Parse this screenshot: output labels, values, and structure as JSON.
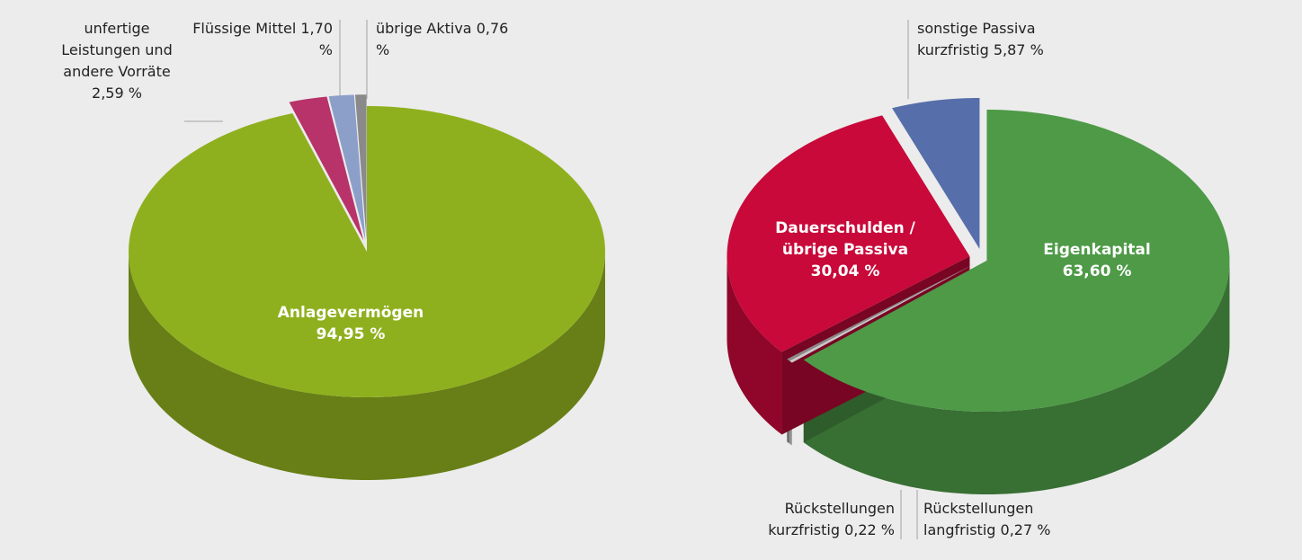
{
  "chart_data": [
    {
      "type": "pie3d",
      "categories": [
        "Anlagevermögen",
        "unfertige Leistungen und andere Vorräte",
        "Flüssige Mittel",
        "übrige Aktiva"
      ],
      "values": [
        94.95,
        2.59,
        1.7,
        0.76
      ],
      "value_labels": [
        "94,95 %",
        "2,59 %",
        "1,70 %",
        "0,76 %"
      ],
      "colors": [
        "#8fb01e",
        "#b8336a",
        "#8c9fc9",
        "#8a8a8a"
      ]
    },
    {
      "type": "pie3d",
      "categories": [
        "Eigenkapital",
        "Rückstellungen langfristig",
        "Rückstellungen kurzfristig",
        "Dauerschulden / übrige Passiva",
        "sonstige Passiva kurzfristig"
      ],
      "values": [
        63.6,
        0.27,
        0.22,
        30.04,
        5.87
      ],
      "value_labels": [
        "63,60 %",
        "0,27 %",
        "0,22 %",
        "30,04 %",
        "5,87 %"
      ],
      "colors": [
        "#4e9a47",
        "#c9c9c9",
        "#8a8a8a",
        "#c8093a",
        "#566ea9"
      ]
    }
  ]
}
